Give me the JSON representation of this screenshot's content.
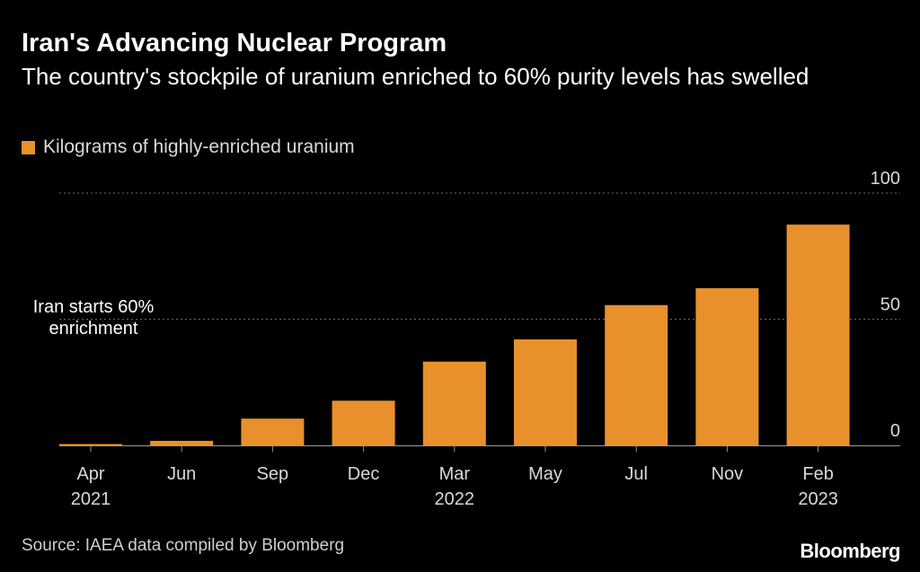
{
  "header": {
    "title": "Iran's Advancing Nuclear Program",
    "subtitle": "The country's stockpile of uranium enriched to 60% purity levels has swelled"
  },
  "legend": {
    "label": "Kilograms of highly-enriched uranium",
    "color": "#E8912C"
  },
  "annotation": {
    "text_line1": "Iran starts 60%",
    "text_line2": "enrichment"
  },
  "footer": {
    "source": "Source: IAEA data compiled by Bloomberg",
    "brand": "Bloomberg"
  },
  "colors": {
    "background": "#000000",
    "bar": "#E8912C",
    "gridline": "#6b6b6b",
    "axis": "#9a9a9a"
  },
  "chart_data": {
    "type": "bar",
    "title": "Iran's Advancing Nuclear Program",
    "subtitle": "The country's stockpile of uranium enriched to 60% purity levels has swelled",
    "categories": [
      [
        "Apr",
        "2021"
      ],
      [
        "Jun",
        ""
      ],
      [
        "Sep",
        ""
      ],
      [
        "Dec",
        ""
      ],
      [
        "Mar",
        "2022"
      ],
      [
        "May",
        ""
      ],
      [
        "Jul",
        ""
      ],
      [
        "Nov",
        ""
      ],
      [
        "Feb",
        "2023"
      ]
    ],
    "series": [
      {
        "name": "Kilograms of highly-enriched uranium",
        "values": [
          0.4,
          1.8,
          10.6,
          17.7,
          33.2,
          42.0,
          55.6,
          62.3,
          87.5
        ]
      }
    ],
    "ylim": [
      0,
      100
    ],
    "yticks": [
      0,
      50,
      100
    ],
    "y_axis_side": "right",
    "grid": "dotted horizontal",
    "legend_position": "top-left",
    "annotation": {
      "text": "Iran starts 60% enrichment",
      "category": "Apr"
    }
  }
}
